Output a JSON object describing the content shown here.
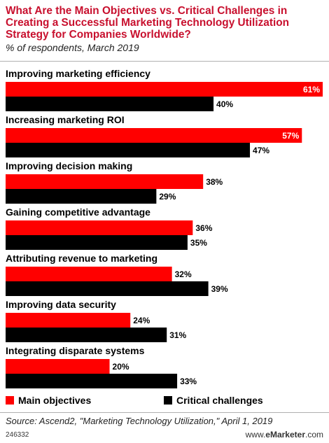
{
  "title": "What Are the Main Objectives vs. Critical Challenges in Creating a Successful Marketing Technology Utilization Strategy for Companies Worldwide?",
  "subtitle": "% of respondents, March 2019",
  "colors": {
    "objectives": "#ff0000",
    "challenges": "#000000",
    "title": "#c8102e"
  },
  "chart_data": {
    "type": "bar",
    "orientation": "horizontal",
    "categories": [
      "Improving marketing efficiency",
      "Increasing marketing ROI",
      "Improving decision making",
      "Gaining competitive advantage",
      "Attributing revenue to marketing",
      "Improving data security",
      "Integrating disparate systems"
    ],
    "series": [
      {
        "name": "Main objectives",
        "values": [
          61,
          57,
          38,
          36,
          32,
          24,
          20
        ]
      },
      {
        "name": "Critical challenges",
        "values": [
          40,
          47,
          29,
          35,
          39,
          31,
          33
        ]
      }
    ],
    "value_suffix": "%",
    "xlim": [
      0,
      61
    ],
    "grid": false,
    "legend_position": "bottom"
  },
  "legend": {
    "objectives_label": "Main objectives",
    "challenges_label": "Critical challenges"
  },
  "source": "Source: Ascend2, \"Marketing Technology Utilization,\" April 1, 2019",
  "chart_id": "246332",
  "brand": {
    "prefix": "www.",
    "name": "eMarketer",
    "suffix": ".com"
  }
}
